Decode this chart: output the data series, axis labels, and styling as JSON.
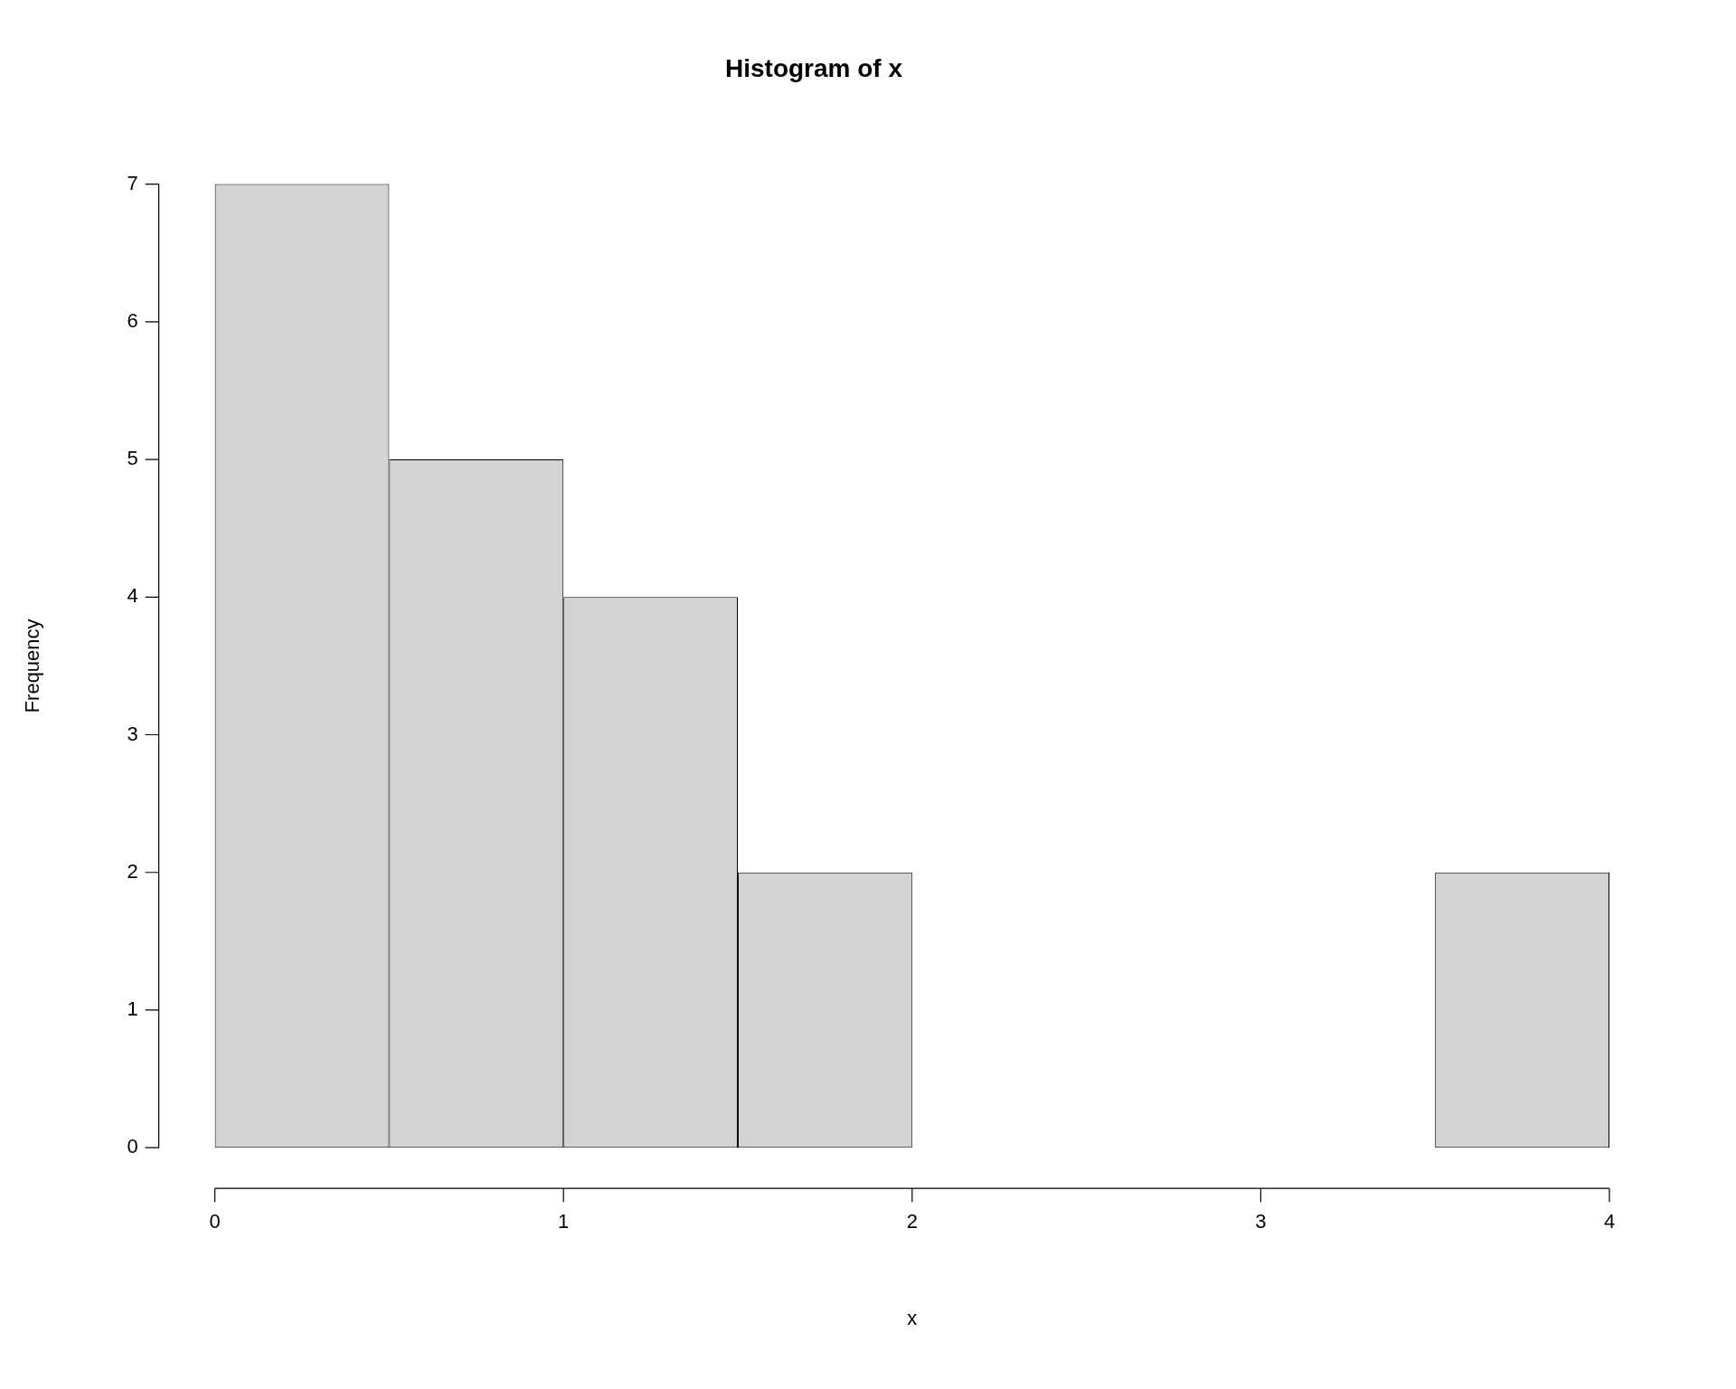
{
  "chart_data": {
    "type": "histogram",
    "title": "Histogram of x",
    "xlabel": "x",
    "ylabel": "Frequency",
    "bins": [
      0,
      0.5,
      1,
      1.5,
      2,
      2.5,
      3,
      3.5,
      4
    ],
    "values": [
      7,
      5,
      4,
      2,
      0,
      0,
      0,
      2
    ],
    "color": "#d3d3d3",
    "xlim": [
      0,
      4
    ],
    "xticks": [
      0,
      1,
      2,
      3,
      4
    ],
    "ylim": [
      0,
      7
    ],
    "yticks": [
      0,
      1,
      2,
      3,
      4,
      5,
      6,
      7
    ],
    "grid": false,
    "legend": false
  }
}
